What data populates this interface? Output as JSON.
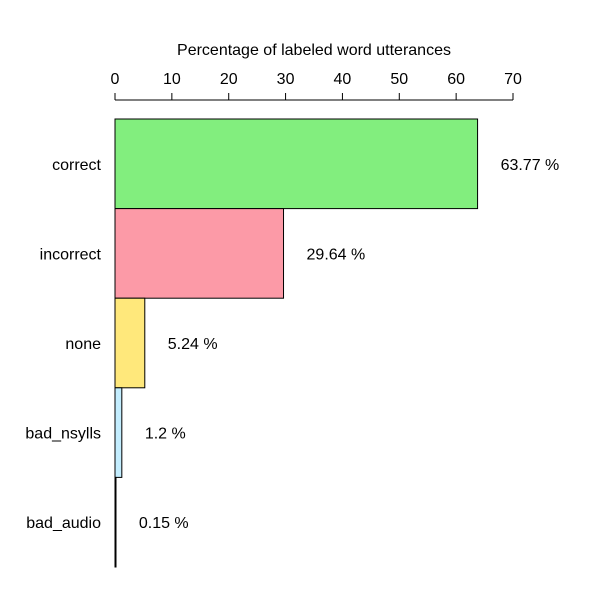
{
  "chart_data": {
    "type": "bar",
    "orientation": "horizontal",
    "title": "",
    "xlabel": "Percentage of labeled word utterances",
    "ylabel": "",
    "xlim": [
      0,
      70
    ],
    "x_ticks": [
      0,
      10,
      20,
      30,
      40,
      50,
      60,
      70
    ],
    "x_axis_position": "top",
    "grid": false,
    "categories": [
      "correct",
      "incorrect",
      "none",
      "bad_nsylls",
      "bad_audio"
    ],
    "values": [
      63.77,
      29.64,
      5.24,
      1.2,
      0.15
    ],
    "value_labels": [
      "63.77 %",
      "29.64 %",
      "5.24 %",
      "1.2 %",
      "0.15 %"
    ],
    "colors": [
      "#82ee7e",
      "#fc9aa7",
      "#ffe87b",
      "#c3edfe",
      "#3c3c96"
    ]
  }
}
